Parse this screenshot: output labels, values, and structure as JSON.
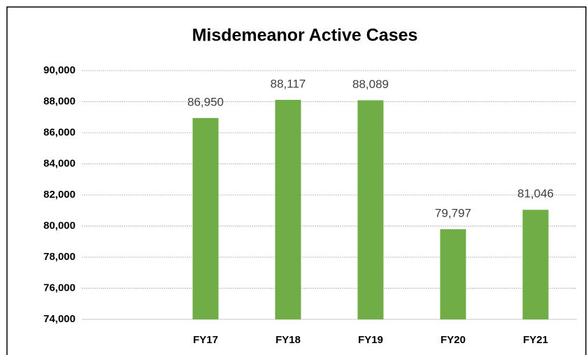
{
  "chart_data": {
    "type": "bar",
    "title": "Misdemeanor Active Cases",
    "categories": [
      null,
      "FY17",
      "FY18",
      "FY19",
      "FY20",
      "FY21"
    ],
    "values": [
      null,
      86950,
      88117,
      88089,
      79797,
      81046
    ],
    "value_labels": [
      null,
      "86,950",
      "88,117",
      "88,089",
      "79,797",
      "81,046"
    ],
    "color": "#70ad47",
    "ylim": [
      74000,
      90000
    ],
    "yticks": [
      {
        "value": 74000,
        "label": "74,000"
      },
      {
        "value": 76000,
        "label": "76,000"
      },
      {
        "value": 78000,
        "label": "78,000"
      },
      {
        "value": 80000,
        "label": "80,000"
      },
      {
        "value": 82000,
        "label": "82,000"
      },
      {
        "value": 84000,
        "label": "84,000"
      },
      {
        "value": 86000,
        "label": "86,000"
      },
      {
        "value": 88000,
        "label": "88,000"
      },
      {
        "value": 90000,
        "label": "90,000"
      }
    ],
    "grid": true
  }
}
